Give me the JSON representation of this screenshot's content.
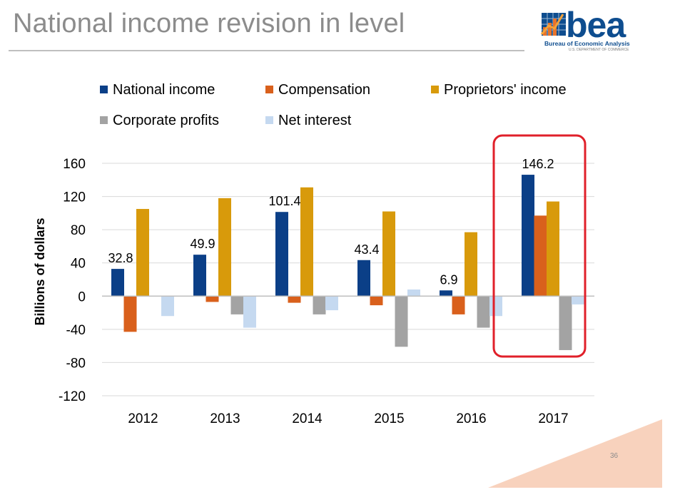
{
  "slide": {
    "title": "National income revision in level",
    "page_number": "36"
  },
  "logo": {
    "word": "bea",
    "line1": "Bureau of Economic Analysis",
    "line2": "U.S. DEPARTMENT OF COMMERCE",
    "brand_color": "#0e4d8f"
  },
  "chart_data": {
    "type": "bar",
    "ylabel": "Billions of dollars",
    "ylim": [
      -120,
      160
    ],
    "yticks": [
      160,
      120,
      80,
      40,
      0,
      -40,
      -80,
      -120
    ],
    "grid": true,
    "legend_position": "top",
    "categories": [
      "2012",
      "2013",
      "2014",
      "2015",
      "2016",
      "2017"
    ],
    "series": [
      {
        "name": "National income",
        "color": "#0b3f87",
        "values": [
          32.8,
          49.9,
          101.4,
          43.4,
          6.9,
          146.2
        ]
      },
      {
        "name": "Compensation",
        "color": "#d9601c",
        "values": [
          -43,
          -7,
          -8,
          -11,
          -22,
          97
        ]
      },
      {
        "name": "Proprietors' income",
        "color": "#d89a0b",
        "values": [
          105,
          118,
          131,
          102,
          77,
          114
        ]
      },
      {
        "name": "Corporate profits",
        "color": "#a3a3a3",
        "values": [
          0,
          -22,
          -22,
          -61,
          -38,
          -65
        ]
      },
      {
        "name": "Net interest",
        "color": "#c5d9f0",
        "values": [
          -24,
          -38,
          -17,
          8,
          -24,
          -10
        ]
      }
    ],
    "data_labels": {
      "series": "National income",
      "values": [
        "32.8",
        "49.9",
        "101.4",
        "43.4",
        "6.9",
        "146.2"
      ]
    },
    "highlight": {
      "category": "2017",
      "color": "#e0202a"
    }
  }
}
